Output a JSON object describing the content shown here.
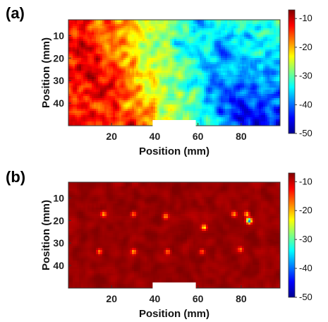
{
  "chart_data": [
    {
      "type": "heatmap",
      "panel_label": "(a)",
      "title": "",
      "xlabel": "Position (mm)",
      "ylabel": "Position (mm)",
      "xlim": [
        0,
        98
      ],
      "ylim": [
        50,
        3
      ],
      "x_ticks": [
        20,
        40,
        60,
        80
      ],
      "y_ticks": [
        10,
        20,
        30,
        40
      ],
      "colorbar": {
        "ticks": [
          -10,
          -20,
          -30,
          -40,
          -50
        ],
        "range": [
          -50,
          -7
        ],
        "colormap": "jet"
      },
      "pattern": "gradient: about -12 at left to about -45 at lower right, speckled noise",
      "value_left": -13,
      "value_right_top": -32,
      "value_right_bottom": -44,
      "occlusion": "white rectangle on bottom edge, x 39-59 mm"
    },
    {
      "type": "heatmap",
      "panel_label": "(b)",
      "title": "",
      "xlabel": "Position (mm)",
      "ylabel": "Position (mm)",
      "xlim": [
        0,
        98
      ],
      "ylim": [
        50,
        3
      ],
      "x_ticks": [
        20,
        40,
        60,
        80
      ],
      "y_ticks": [
        10,
        20,
        30,
        40
      ],
      "colorbar": {
        "ticks": [
          -10,
          -20,
          -30,
          -40,
          -50
        ],
        "range": [
          -50,
          -7
        ],
        "colormap": "jet"
      },
      "pattern": "nearly uniform about -8 with scattered hot spots",
      "background_value": -8,
      "hot_spots": [
        {
          "x": 16,
          "y": 17,
          "v": -20
        },
        {
          "x": 30,
          "y": 17,
          "v": -18
        },
        {
          "x": 45,
          "y": 18,
          "v": -19
        },
        {
          "x": 63,
          "y": 23,
          "v": -24
        },
        {
          "x": 77,
          "y": 17,
          "v": -20
        },
        {
          "x": 83,
          "y": 17,
          "v": -22
        },
        {
          "x": 84,
          "y": 20,
          "v": -40
        },
        {
          "x": 14,
          "y": 34,
          "v": -18
        },
        {
          "x": 30,
          "y": 34,
          "v": -20
        },
        {
          "x": 46,
          "y": 34,
          "v": -18
        },
        {
          "x": 62,
          "y": 34,
          "v": -17
        },
        {
          "x": 80,
          "y": 33,
          "v": -18
        }
      ],
      "occlusion": "white rectangle on bottom edge, x 39-59 mm"
    }
  ]
}
